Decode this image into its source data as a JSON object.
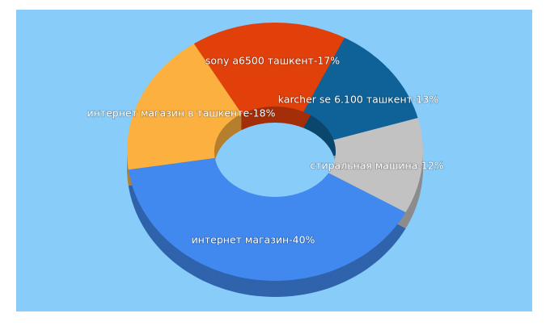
{
  "chart_data": {
    "type": "pie",
    "value_labels": [
      "интернет магазин-40%",
      "стиральная машина-12%",
      "karcher se 6.100 ташкент-13%",
      "sony a6500 ташкент-17%",
      "интернет магазин в ташкенте-18%"
    ],
    "values": [
      40,
      12,
      13,
      17,
      18
    ],
    "colors": [
      "#4189ef",
      "#c2c2c2",
      "#0f6298",
      "#e2400b",
      "#fbb040"
    ]
  }
}
